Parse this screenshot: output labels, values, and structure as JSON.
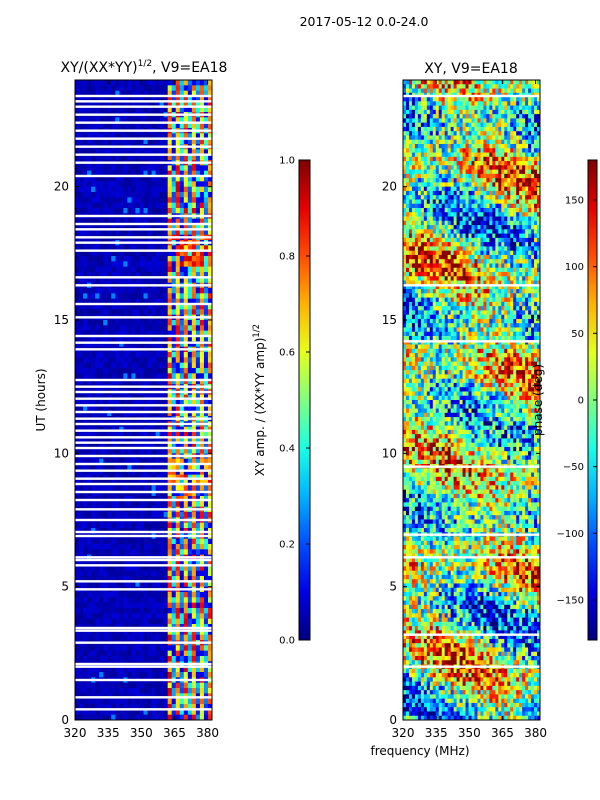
{
  "header": {
    "title": "2017-05-12 0.0-24.0"
  },
  "chart_data": [
    {
      "type": "heatmap",
      "title_prefix": "XY/(XX*YY)",
      "title_exponent": "1/2",
      "title_suffix": ", V9=EA18",
      "xlabel": "",
      "ylabel": "UT (hours)",
      "xlim": [
        320,
        382
      ],
      "ylim": [
        0,
        24
      ],
      "xticks": [
        "320",
        "335",
        "350",
        "365",
        "380"
      ],
      "yticks": [
        "0",
        "5",
        "10",
        "15",
        "20"
      ],
      "colorbar": {
        "label_main": "XY amp. / (XX*YY amp)",
        "label_exponent": "1/2",
        "range": [
          0.0,
          1.0
        ],
        "ticks": [
          "0.0",
          "0.2",
          "0.4",
          "0.6",
          "0.8",
          "1.0"
        ],
        "colormap": "jet"
      },
      "band": {
        "low_region_end_mhz": 362,
        "channel_mean": 0.5
      },
      "highlights": [
        {
          "from": 17.0,
          "to": 18.5,
          "value": 0.8
        },
        {
          "from": 8.2,
          "to": 9.9,
          "value": 0.72
        }
      ],
      "blank_rows": [
        0.4,
        0.85,
        1.5,
        2.0,
        2.1,
        2.9,
        3.35,
        3.45,
        4.9,
        5.2,
        5.8,
        6.0,
        6.1,
        6.9,
        7.05,
        7.5,
        7.9,
        8.25,
        8.55,
        8.85,
        9.05,
        9.35,
        9.6,
        9.9,
        10.2,
        10.4,
        10.6,
        10.85,
        11.1,
        11.3,
        11.55,
        11.8,
        12.05,
        12.3,
        12.5,
        12.75,
        13.9,
        14.15,
        14.4,
        15.1,
        15.6,
        16.3,
        16.6,
        17.6,
        17.9,
        18.1,
        18.4,
        18.6,
        18.9,
        20.4,
        20.9,
        21.2,
        21.5,
        21.8,
        22.1,
        22.4,
        22.7,
        23.0,
        23.2,
        23.4
      ]
    },
    {
      "type": "heatmap",
      "title": "XY, V9=EA18",
      "xlabel": "frequency (MHz)",
      "ylabel": "",
      "xlim": [
        320,
        382
      ],
      "ylim": [
        0,
        24
      ],
      "xticks": [
        "320",
        "335",
        "350",
        "365",
        "380"
      ],
      "yticks": [
        "0",
        "5",
        "10",
        "15",
        "20"
      ],
      "colorbar": {
        "label": "phase (deg)",
        "range": [
          -180,
          180
        ],
        "ticks": [
          "−150",
          "−100",
          "−50",
          "0",
          "50",
          "100",
          "150"
        ],
        "colormap": "jet"
      },
      "blank_rows": [
        2.0,
        3.2,
        6.1,
        6.95,
        9.5,
        14.2,
        16.3,
        23.4
      ]
    }
  ]
}
